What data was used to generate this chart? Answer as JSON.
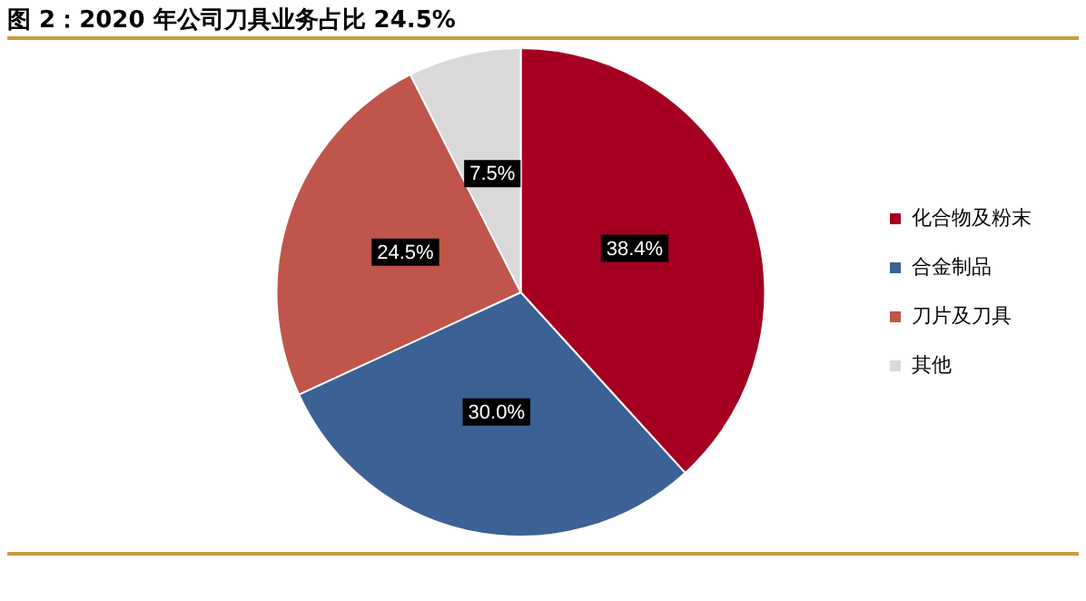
{
  "chart_data": {
    "type": "pie",
    "title": "图 2：2020 年公司刀具业务占比 24.5%",
    "categories": [
      "化合物及粉末",
      "合金制品",
      "刀片及刀具",
      "其他"
    ],
    "values": [
      38.4,
      30.0,
      24.5,
      7.5
    ],
    "value_labels": [
      "38.4%",
      "30.0%",
      "24.5%",
      "7.5%"
    ],
    "colors": [
      "#a50021",
      "#3b6195",
      "#c0554b",
      "#d9d9d9"
    ],
    "legend": "right"
  }
}
